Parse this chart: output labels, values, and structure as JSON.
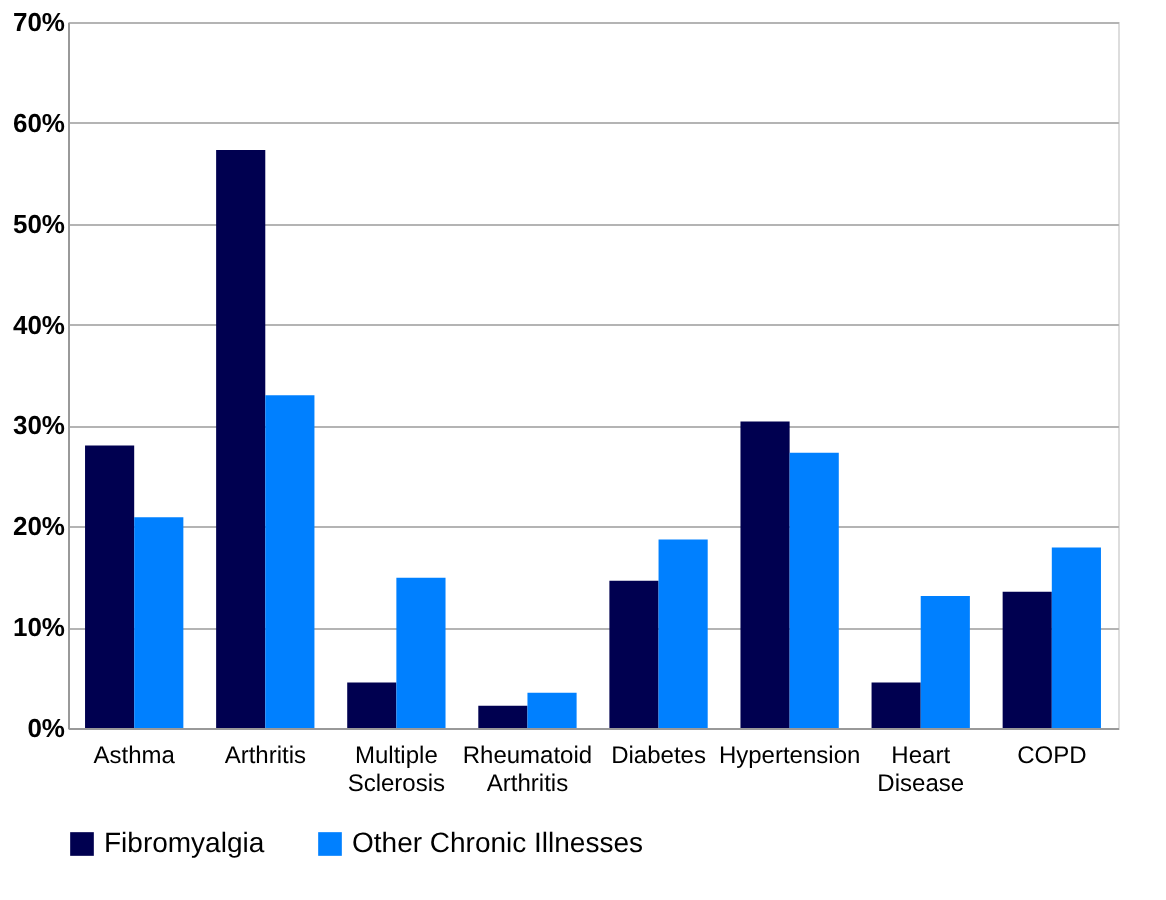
{
  "chart_data": {
    "type": "bar",
    "categories": [
      "Asthma",
      "Arthritis",
      "Multiple Sclerosis",
      "Rheumatoid Arthritis",
      "Diabetes",
      "Hypertension",
      "Heart Disease",
      "COPD"
    ],
    "series": [
      {
        "name": "Fibromyalgia",
        "color": "#000050",
        "values": [
          28,
          57.3,
          4.5,
          2.2,
          14.6,
          30.4,
          4.5,
          13.5
        ]
      },
      {
        "name": "Other Chronic Illnesses",
        "color": "#0080ff",
        "values": [
          20.9,
          33,
          14.9,
          3.5,
          18.7,
          27.3,
          13.1,
          17.9
        ]
      }
    ],
    "ylim": [
      0,
      70
    ],
    "yticks": [
      {
        "value": 0,
        "label": "0%"
      },
      {
        "value": 10,
        "label": "10%"
      },
      {
        "value": 20,
        "label": "20%"
      },
      {
        "value": 30,
        "label": "30%"
      },
      {
        "value": 40,
        "label": "40%"
      },
      {
        "value": 50,
        "label": "50%"
      },
      {
        "value": 60,
        "label": "60%"
      },
      {
        "value": 70,
        "label": "70%"
      }
    ],
    "grid": "y",
    "legend": "bottom"
  }
}
